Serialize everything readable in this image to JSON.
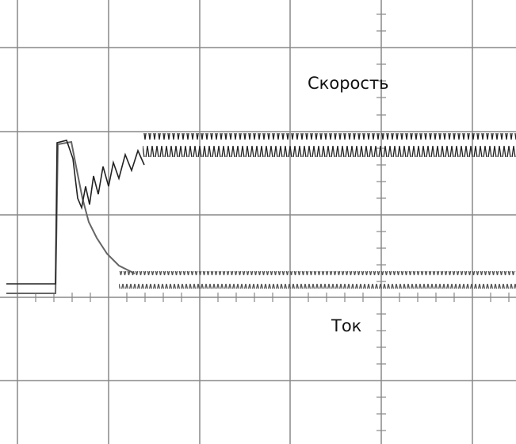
{
  "labels": {
    "speed": "Скорость",
    "current": "Ток"
  }
}
